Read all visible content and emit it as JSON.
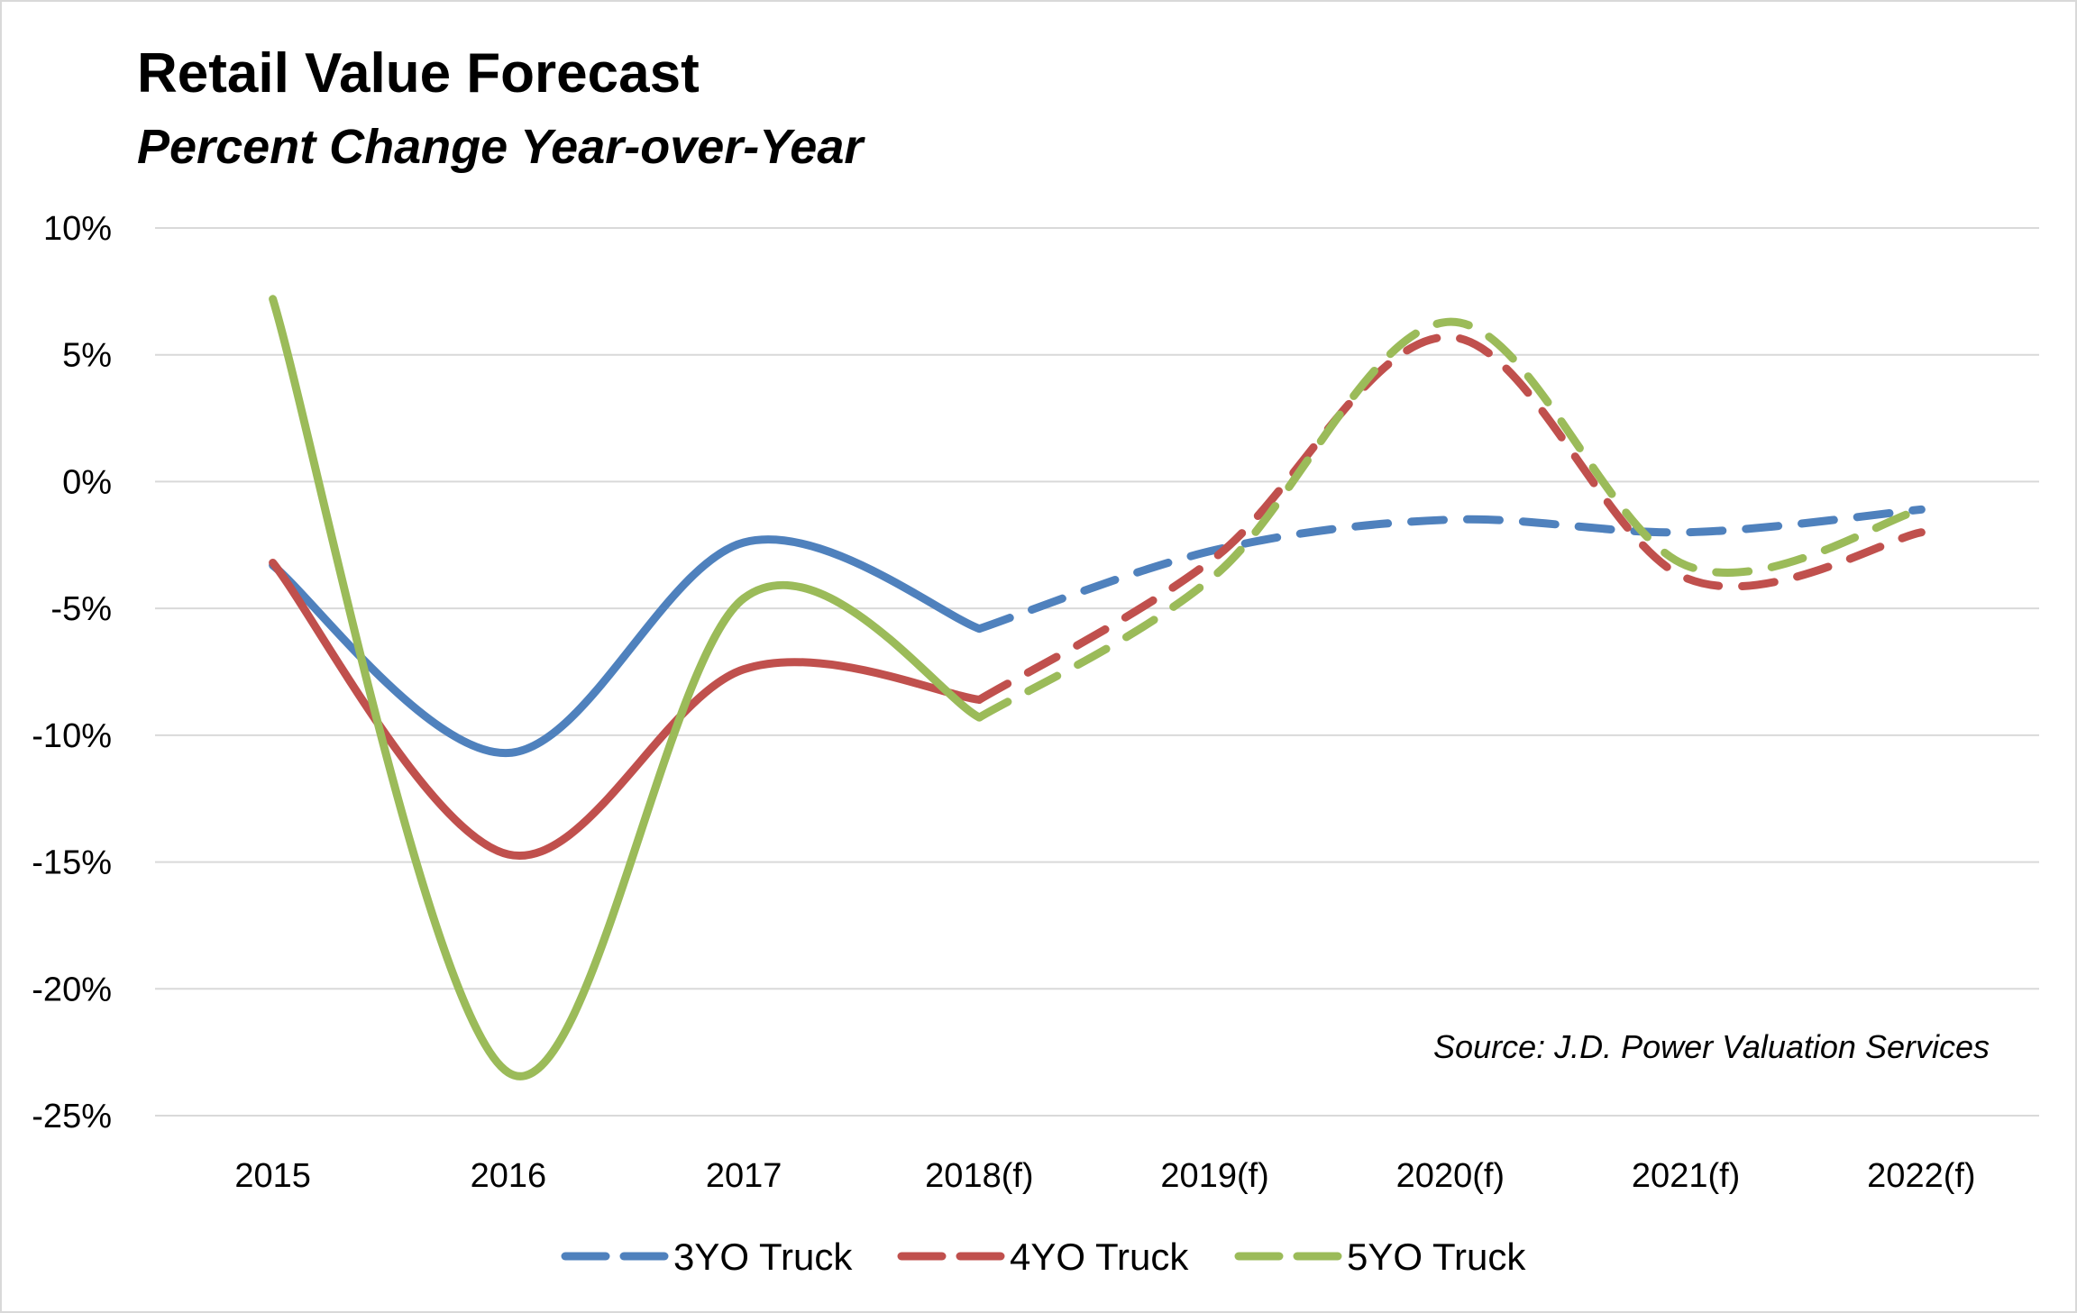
{
  "chart_data": {
    "type": "line",
    "title": "Retail Value Forecast",
    "subtitle": "Percent Change Year-over-Year",
    "categories": [
      "2015",
      "2016",
      "2017",
      "2018(f)",
      "2019(f)",
      "2020(f)",
      "2021(f)",
      "2022(f)"
    ],
    "forecast_from_index": 3,
    "ylim": [
      -25,
      10
    ],
    "yticks": [
      10,
      5,
      0,
      -5,
      -10,
      -15,
      -20,
      -25
    ],
    "ytick_labels": [
      "10%",
      "5%",
      "0%",
      "-5%",
      "-10%",
      "-15%",
      "-20%",
      "-25%"
    ],
    "grid": true,
    "legend_position": "bottom",
    "source_note": "Source: J.D. Power Valuation Services",
    "series": [
      {
        "name": "3YO Truck",
        "color": "#4f81bd",
        "values": [
          -3.3,
          -10.7,
          -2.4,
          -5.8,
          -2.7,
          -1.5,
          -2.0,
          -1.1
        ]
      },
      {
        "name": "4YO Truck",
        "color": "#c0504d",
        "values": [
          -3.2,
          -14.7,
          -7.4,
          -8.6,
          -3.0,
          5.7,
          -3.8,
          -2.0
        ]
      },
      {
        "name": "5YO Truck",
        "color": "#9bbb59",
        "values": [
          7.2,
          -23.3,
          -4.6,
          -9.3,
          -3.7,
          6.3,
          -3.3,
          -1.1
        ]
      }
    ]
  }
}
